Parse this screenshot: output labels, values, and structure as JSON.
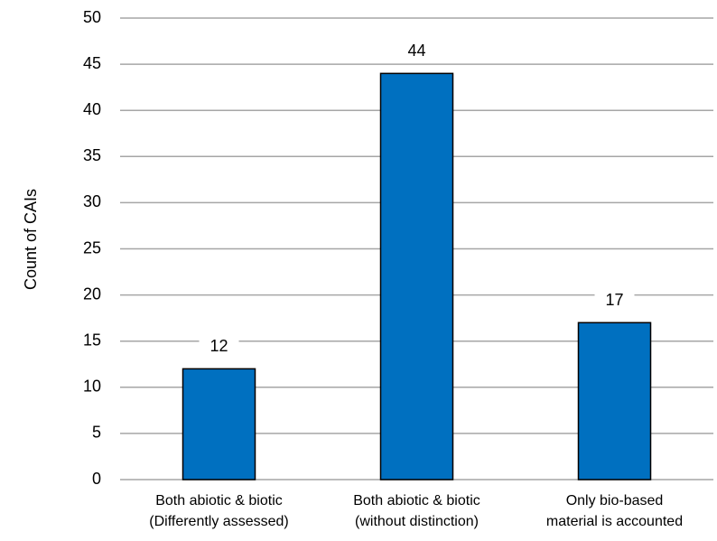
{
  "chart_data": {
    "type": "bar",
    "y_label": "Count of CAIs",
    "categories": [
      [
        "Both abiotic & biotic",
        "(Differently assessed)"
      ],
      [
        "Both abiotic & biotic",
        "(without distinction)"
      ],
      [
        "Only bio-based",
        "material is accounted"
      ]
    ],
    "values": [
      12,
      44,
      17
    ],
    "color": "#0070c0",
    "ylim": [
      0,
      50
    ],
    "yticks": [
      0,
      5,
      10,
      15,
      20,
      25,
      30,
      35,
      40,
      45,
      50
    ],
    "grid": true
  }
}
